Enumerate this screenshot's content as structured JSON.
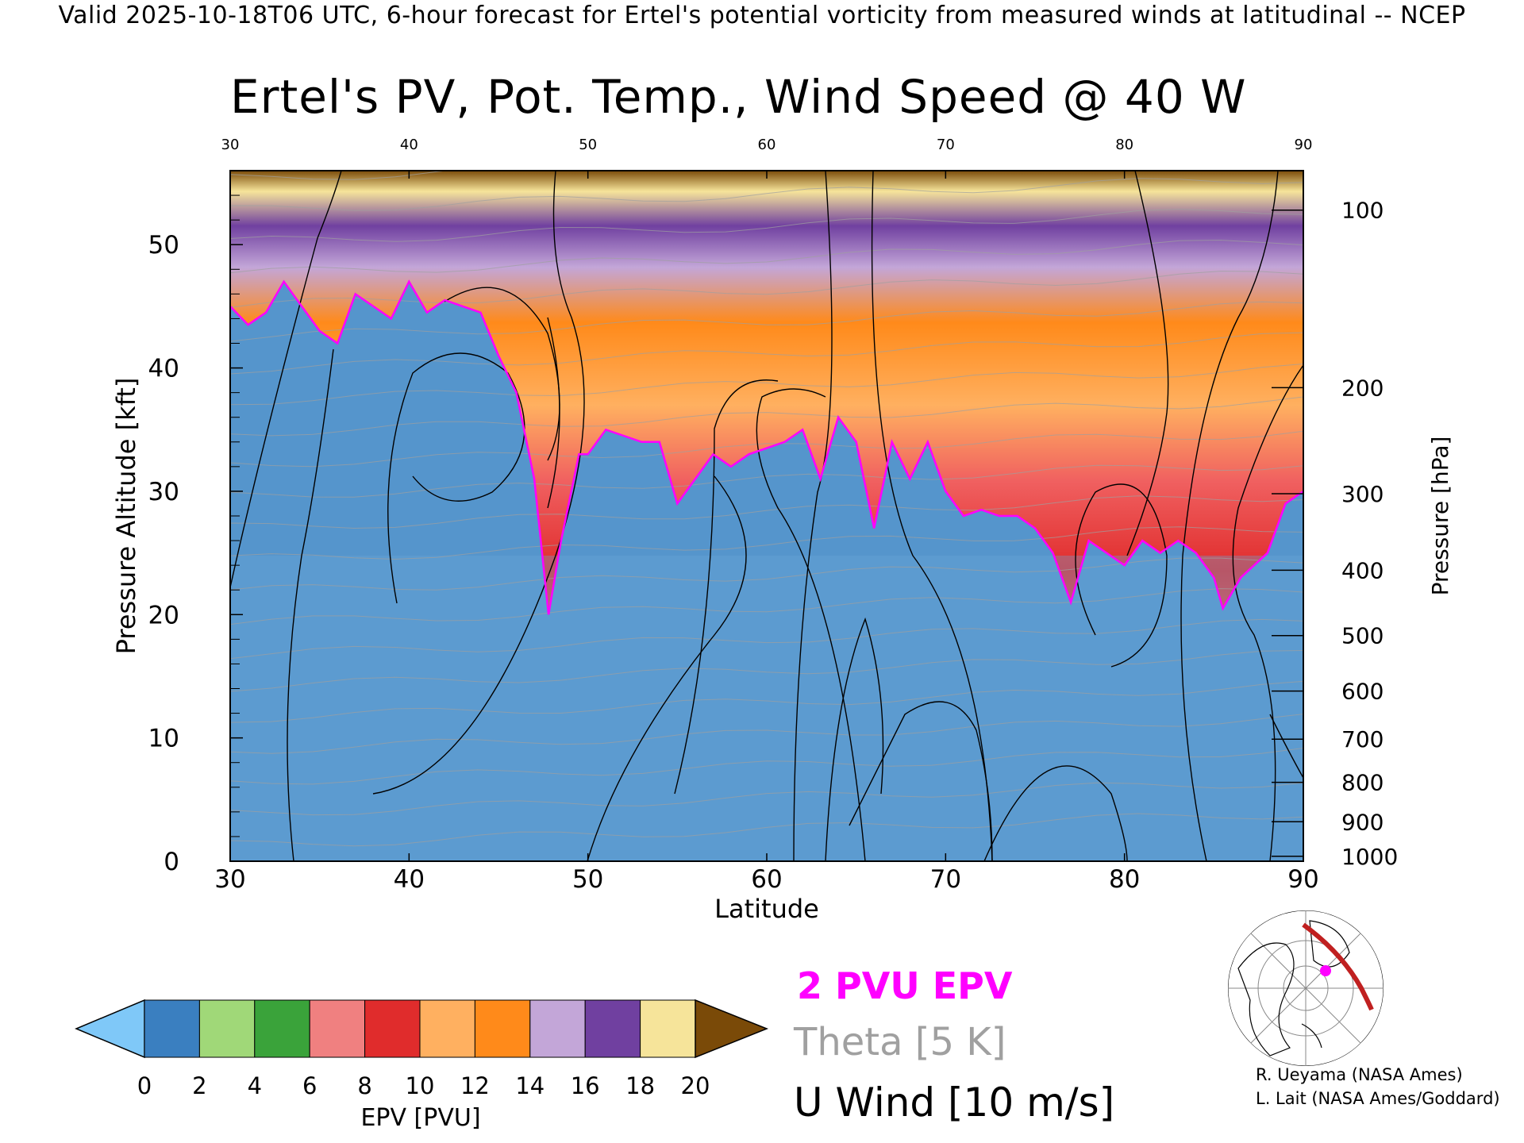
{
  "caption": "Valid 2025-10-18T06 UTC, 6-hour forecast for Ertel's potential vorticity from measured winds at latitudinal -- NCEP",
  "chart_data": {
    "type": "heatmap",
    "title": "Ertel's PV, Pot. Temp., Wind Speed @ 40 W",
    "xlabel": "Latitude",
    "ylabel": "Pressure Altitude [kft]",
    "y2label": "Pressure [hPa]",
    "xlim": [
      30,
      90
    ],
    "ylim": [
      0,
      56
    ],
    "x_ticks": [
      "30",
      "40",
      "50",
      "60",
      "70",
      "80",
      "90"
    ],
    "y_ticks": [
      "0",
      "10",
      "20",
      "30",
      "40",
      "50"
    ],
    "pressure_ticks": [
      {
        "label": "100",
        "kft": 52.8
      },
      {
        "label": "200",
        "kft": 38.4
      },
      {
        "label": "300",
        "kft": 29.8
      },
      {
        "label": "400",
        "kft": 23.6
      },
      {
        "label": "500",
        "kft": 18.3
      },
      {
        "label": "600",
        "kft": 13.8
      },
      {
        "label": "700",
        "kft": 9.9
      },
      {
        "label": "800",
        "kft": 6.4
      },
      {
        "label": "900",
        "kft": 3.2
      },
      {
        "label": "1000",
        "kft": 0.4
      }
    ],
    "pv_2pvu_height_kft": [
      [
        30,
        45
      ],
      [
        31,
        43.5
      ],
      [
        32,
        44.5
      ],
      [
        33,
        47
      ],
      [
        34,
        45
      ],
      [
        35,
        43
      ],
      [
        36,
        42
      ],
      [
        37,
        46
      ],
      [
        38,
        45
      ],
      [
        39,
        44
      ],
      [
        40,
        47
      ],
      [
        41,
        44.5
      ],
      [
        42,
        45.5
      ],
      [
        43,
        45
      ],
      [
        44,
        44.5
      ],
      [
        45,
        41
      ],
      [
        46,
        38
      ],
      [
        47,
        31
      ],
      [
        47.8,
        20
      ],
      [
        48.5,
        26
      ],
      [
        49.5,
        33
      ],
      [
        50,
        33
      ],
      [
        51,
        35
      ],
      [
        52,
        34.5
      ],
      [
        53,
        34
      ],
      [
        54,
        34
      ],
      [
        55,
        29
      ],
      [
        56,
        31
      ],
      [
        57,
        33
      ],
      [
        58,
        32
      ],
      [
        59,
        33
      ],
      [
        60,
        33.5
      ],
      [
        61,
        34
      ],
      [
        62,
        35
      ],
      [
        63,
        31
      ],
      [
        64,
        36
      ],
      [
        65,
        34
      ],
      [
        66,
        27
      ],
      [
        67,
        34
      ],
      [
        68,
        31
      ],
      [
        69,
        34
      ],
      [
        70,
        30
      ],
      [
        71,
        28
      ],
      [
        72,
        28.5
      ],
      [
        73,
        28
      ],
      [
        74,
        28
      ],
      [
        75,
        27
      ],
      [
        76,
        25
      ],
      [
        77,
        21
      ],
      [
        78,
        26
      ],
      [
        79,
        25
      ],
      [
        80,
        24
      ],
      [
        81,
        26
      ],
      [
        82,
        25
      ],
      [
        83,
        26
      ],
      [
        84,
        25
      ],
      [
        85,
        23
      ],
      [
        85.5,
        20.5
      ],
      [
        86.5,
        23
      ],
      [
        88,
        25
      ],
      [
        89,
        29
      ],
      [
        90,
        30
      ]
    ],
    "colorbar": {
      "label": "EPV [PVU]",
      "ticks": [
        "0",
        "2",
        "4",
        "6",
        "8",
        "10",
        "12",
        "14",
        "16",
        "18",
        "20"
      ],
      "colors": [
        "#7fc8f8",
        "#3a7fc0",
        "#a0d878",
        "#3aa33a",
        "#f08080",
        "#e02c2c",
        "#ffb060",
        "#ff8a1a",
        "#c3a6d8",
        "#7040a0",
        "#f6e49a",
        "#7a4a08"
      ]
    },
    "overlays": [
      "2 PVU EPV",
      "Theta [5 K]",
      "U Wind [10 m/s]"
    ],
    "grid": false
  },
  "credits": [
    "R. Ueyama (NASA Ames)",
    "L. Lait (NASA Ames/Goddard)"
  ]
}
